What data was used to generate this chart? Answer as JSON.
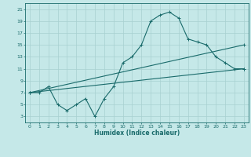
{
  "xlabel": "Humidex (Indice chaleur)",
  "xlim": [
    -0.5,
    23.5
  ],
  "ylim": [
    2,
    22
  ],
  "xticks": [
    0,
    1,
    2,
    3,
    4,
    5,
    6,
    7,
    8,
    9,
    10,
    11,
    12,
    13,
    14,
    15,
    16,
    17,
    18,
    19,
    20,
    21,
    22,
    23
  ],
  "yticks": [
    3,
    5,
    7,
    9,
    11,
    13,
    15,
    17,
    19,
    21
  ],
  "bg_color": "#c5e8e8",
  "grid_color": "#a8d0d0",
  "line_color": "#1a6b6b",
  "line1_x": [
    0,
    1,
    2,
    3,
    4,
    5,
    6,
    7,
    8,
    9,
    10,
    11,
    12,
    13,
    14,
    15,
    16,
    17,
    18,
    19,
    20,
    21,
    22,
    23
  ],
  "line1_y": [
    7,
    7,
    8,
    5,
    4,
    5,
    6,
    3,
    6,
    8,
    12,
    13,
    15,
    19,
    20,
    20.5,
    19.5,
    16,
    15.5,
    15,
    13,
    12,
    11,
    11
  ],
  "line2_x": [
    0,
    23
  ],
  "line2_y": [
    7,
    11
  ],
  "line3_x": [
    0,
    23
  ],
  "line3_y": [
    7,
    15
  ],
  "figsize": [
    3.2,
    2.0
  ],
  "dpi": 100
}
